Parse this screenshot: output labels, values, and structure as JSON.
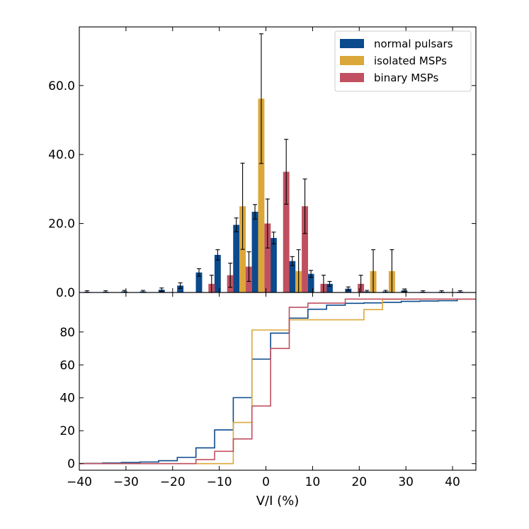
{
  "chart_data": [
    {
      "type": "bar",
      "panel": "top",
      "xlabel": "",
      "ylabel": "",
      "xlim": [
        -40,
        45
      ],
      "ylim": [
        0,
        77
      ],
      "yticks": [
        0,
        20,
        40,
        60
      ],
      "ytick_labels": [
        "0.0",
        "20.0",
        "40.0",
        "60.0"
      ],
      "legend_position": "top-right",
      "bin_centers": [
        -37,
        -33,
        -29,
        -25,
        -21,
        -17,
        -13,
        -9,
        -5,
        -1,
        3,
        7,
        11,
        15,
        19,
        23,
        27,
        31,
        35,
        39,
        43
      ],
      "series": [
        {
          "name": "normal pulsars",
          "color": "#0b4a8c",
          "values": [
            0.2,
            0.2,
            0.3,
            0.3,
            0.8,
            2.0,
            5.8,
            10.9,
            19.6,
            23.4,
            15.8,
            9.1,
            5.4,
            2.5,
            1.1,
            0.3,
            0.3,
            0.6,
            0.2,
            0.2,
            0.2
          ],
          "errors": [
            0.3,
            0.3,
            0.3,
            0.3,
            0.5,
            0.8,
            1.1,
            1.5,
            2.0,
            2.1,
            1.7,
            1.3,
            1.0,
            0.7,
            0.5,
            0.3,
            0.3,
            0.4,
            0.3,
            0.3,
            0.3
          ]
        },
        {
          "name": "isolated MSPs",
          "color": "#dca73a",
          "values": [
            0,
            0,
            0,
            0,
            0,
            0,
            0,
            0,
            25.0,
            56.2,
            0,
            6.2,
            0,
            0,
            0,
            6.2,
            6.2,
            0,
            0,
            0,
            0
          ],
          "errors": [
            0,
            0,
            0,
            0,
            0,
            0,
            0,
            0,
            12.5,
            18.8,
            0,
            6.2,
            0,
            0,
            0,
            6.2,
            6.2,
            0,
            0,
            0,
            0
          ]
        },
        {
          "name": "binary MSPs",
          "color": "#c05060",
          "values": [
            0,
            0,
            0,
            0,
            0,
            0,
            2.5,
            5.0,
            7.5,
            20.0,
            35.0,
            25.0,
            2.5,
            0,
            2.5,
            0,
            0,
            0,
            0,
            0,
            0
          ],
          "errors": [
            0,
            0,
            0,
            0,
            0,
            0,
            2.5,
            3.5,
            4.3,
            7.1,
            9.4,
            7.9,
            2.5,
            0,
            2.5,
            0,
            0,
            0,
            0,
            0,
            0
          ]
        }
      ]
    },
    {
      "type": "line",
      "panel": "bottom",
      "drawstyle": "step",
      "xlabel": "V/I (%)",
      "ylabel": "",
      "xlim": [
        -40,
        45
      ],
      "ylim": [
        -4,
        104
      ],
      "xticks": [
        -40,
        -30,
        -20,
        -10,
        0,
        10,
        20,
        30,
        40
      ],
      "xtick_labels": [
        "−40",
        "−30",
        "−20",
        "−10",
        "0",
        "10",
        "20",
        "30",
        "40"
      ],
      "yticks": [
        0,
        20,
        40,
        60,
        80
      ],
      "ytick_labels": [
        "0",
        "20",
        "40",
        "60",
        "80"
      ],
      "bin_edges": [
        -39,
        -35,
        -31,
        -27,
        -23,
        -19,
        -15,
        -11,
        -7,
        -3,
        1,
        5,
        9,
        13,
        17,
        21,
        25,
        29,
        33,
        37,
        41,
        45
      ],
      "series": [
        {
          "name": "normal pulsars",
          "color": "#0b4a8c",
          "values": [
            0.2,
            0.4,
            0.7,
            1.0,
            1.8,
            3.8,
            9.6,
            20.5,
            40.1,
            63.5,
            79.3,
            88.4,
            93.8,
            96.3,
            97.4,
            97.7,
            98.0,
            98.6,
            98.8,
            99.0,
            100
          ]
        },
        {
          "name": "isolated MSPs",
          "color": "#dca73a",
          "values": [
            0,
            0,
            0,
            0,
            0,
            0,
            0,
            0,
            25.0,
            81.2,
            81.2,
            87.4,
            87.4,
            87.4,
            87.4,
            93.6,
            99.8,
            100,
            100,
            100,
            100
          ]
        },
        {
          "name": "binary MSPs",
          "color": "#c05060",
          "values": [
            0,
            0,
            0,
            0,
            0,
            0,
            2.5,
            7.5,
            15.0,
            35.0,
            70.0,
            95.0,
            97.5,
            97.5,
            100,
            100,
            100,
            100,
            100,
            100,
            100
          ]
        }
      ]
    }
  ]
}
